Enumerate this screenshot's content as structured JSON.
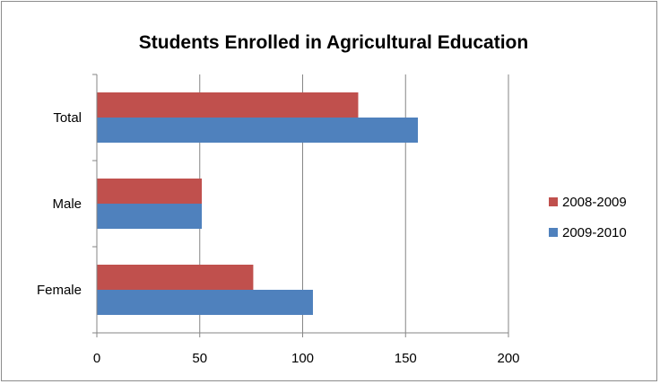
{
  "chart_data": {
    "type": "bar",
    "orientation": "horizontal",
    "title": "Students Enrolled in Agricultural Education",
    "xlabel": "",
    "ylabel": "",
    "categories": [
      "Total",
      "Male",
      "Female"
    ],
    "series": [
      {
        "name": "2008-2009",
        "color": "#c0504d",
        "values": [
          127,
          51,
          76
        ]
      },
      {
        "name": "2009-2010",
        "color": "#4f81bd",
        "values": [
          156,
          51,
          105
        ]
      }
    ],
    "xlim": [
      0,
      200
    ],
    "x_ticks": [
      "0",
      "50",
      "100",
      "150",
      "200"
    ],
    "grid": true,
    "legend_position": "right"
  }
}
